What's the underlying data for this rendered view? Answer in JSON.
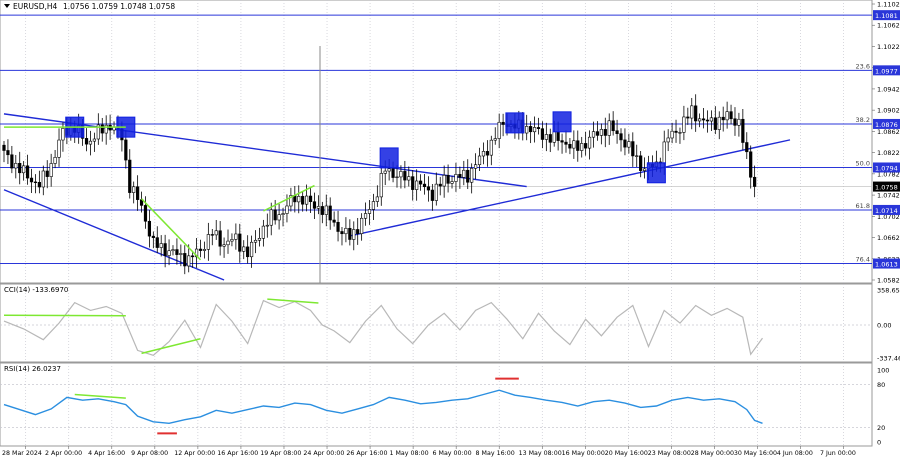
{
  "header": {
    "symbol_label": "EURUSD,H4",
    "ohlc_text": "1.0756 1.0759 1.0748 1.0758"
  },
  "colors": {
    "candle": "#000000",
    "trendline": "#1f2bd6",
    "level_line": "#2a36d9",
    "divergence": "#7ee832",
    "box": "#1020e0",
    "indicator_line_cci": "#b8b8b8",
    "indicator_line_rsi": "#2b8fe0",
    "rsi_marker": "#e03030",
    "price_tag_bg": "#2a36d9",
    "current_price_bg": "#000000",
    "grid": "#c8c8d0"
  },
  "price_axis": {
    "ticks": [
      "1.1102",
      "1.1062",
      "1.1022",
      "1.0982",
      "1.0942",
      "1.0902",
      "1.0862",
      "1.0822",
      "1.0782",
      "1.0742",
      "1.0702",
      "1.0662",
      "1.0622",
      "1.0582"
    ],
    "range": [
      1.0582,
      1.1102
    ],
    "current_price": "1.0758"
  },
  "fib_levels": [
    {
      "label": "",
      "price": 1.1081,
      "tag": "1.1081"
    },
    {
      "label": "23.6",
      "price": 1.0977,
      "tag": "1.0977"
    },
    {
      "label": "38.2",
      "price": 1.0876,
      "tag": "1.0876"
    },
    {
      "label": "50.0",
      "price": 1.0794,
      "tag": "1.0794"
    },
    {
      "label": "61.8",
      "price": 1.0714,
      "tag": "1.0714"
    },
    {
      "label": "76.4",
      "price": 1.0613,
      "tag": "1.0613"
    }
  ],
  "cci": {
    "title": "CCI(14) -133.6970",
    "ticks": [
      "358.6587",
      "0.00",
      "-337.462"
    ],
    "range": [
      -337.462,
      358.6587
    ]
  },
  "rsi": {
    "title": "RSI(14) 26.0237",
    "ticks": [
      "100",
      "80",
      "20",
      "0"
    ],
    "range": [
      0,
      100
    ]
  },
  "time_axis": {
    "labels": [
      "28 Mar 2024",
      "2 Apr 00:00",
      "4 Apr 16:00",
      "9 Apr 08:00",
      "12 Apr 00:00",
      "16 Apr 16:00",
      "19 Apr 08:00",
      "24 Apr 00:00",
      "26 Apr 16:00",
      "1 May 08:00",
      "6 May 00:00",
      "8 May 16:00",
      "13 May 08:00",
      "16 May 00:00",
      "20 May 16:00",
      "23 May 08:00",
      "28 May 00:00",
      "30 May 16:00",
      "4 Jun 08:00",
      "7 Jun 00:00"
    ]
  },
  "chart_data": {
    "type": "candlestick",
    "title": "EURUSD,H4",
    "ylim": [
      1.0582,
      1.1102
    ],
    "close_anchors": [
      [
        0,
        1.082
      ],
      [
        4,
        1.079
      ],
      [
        9,
        1.076
      ],
      [
        12,
        1.08
      ],
      [
        15,
        1.086
      ],
      [
        18,
        1.087
      ],
      [
        21,
        1.084
      ],
      [
        24,
        1.086
      ],
      [
        27,
        1.0875
      ],
      [
        30,
        1.085
      ],
      [
        32,
        1.076
      ],
      [
        35,
        1.072
      ],
      [
        38,
        1.065
      ],
      [
        41,
        1.064
      ],
      [
        44,
        1.063
      ],
      [
        47,
        1.062
      ],
      [
        50,
        1.064
      ],
      [
        53,
        1.067
      ],
      [
        56,
        1.065
      ],
      [
        59,
        1.066
      ],
      [
        62,
        1.063
      ],
      [
        65,
        1.067
      ],
      [
        68,
        1.07
      ],
      [
        71,
        1.071
      ],
      [
        74,
        1.074
      ],
      [
        77,
        1.073
      ],
      [
        80,
        1.072
      ],
      [
        83,
        1.07
      ],
      [
        86,
        1.067
      ],
      [
        88,
        1.0665
      ],
      [
        91,
        1.069
      ],
      [
        94,
        1.073
      ],
      [
        97,
        1.079
      ],
      [
        100,
        1.078
      ],
      [
        103,
        1.077
      ],
      [
        106,
        1.076
      ],
      [
        109,
        1.0745
      ],
      [
        112,
        1.077
      ],
      [
        115,
        1.0775
      ],
      [
        118,
        1.078
      ],
      [
        121,
        1.081
      ],
      [
        124,
        1.084
      ],
      [
        127,
        1.088
      ],
      [
        130,
        1.087
      ],
      [
        133,
        1.087
      ],
      [
        136,
        1.086
      ],
      [
        139,
        1.085
      ],
      [
        142,
        1.0845
      ],
      [
        145,
        1.083
      ],
      [
        148,
        1.084
      ],
      [
        151,
        1.086
      ],
      [
        154,
        1.087
      ],
      [
        157,
        1.085
      ],
      [
        160,
        1.082
      ],
      [
        163,
        1.079
      ],
      [
        166,
        1.08
      ],
      [
        169,
        1.085
      ],
      [
        172,
        1.087
      ],
      [
        175,
        1.09
      ],
      [
        178,
        1.088
      ],
      [
        181,
        1.088
      ],
      [
        184,
        1.089
      ],
      [
        187,
        1.088
      ],
      [
        189,
        1.081
      ],
      [
        191,
        1.076
      ]
    ],
    "boxes": [
      {
        "i": 18,
        "price": 1.087
      },
      {
        "i": 31,
        "price": 1.087
      },
      {
        "i": 98,
        "price": 1.0812
      },
      {
        "i": 130,
        "price": 1.0878
      },
      {
        "i": 142,
        "price": 1.088
      },
      {
        "i": 166,
        "price": 1.0784
      }
    ],
    "trendlines": [
      {
        "i1": 0,
        "p1": 1.0895,
        "i2": 133,
        "p2": 1.0758
      },
      {
        "i1": 0,
        "p1": 1.0752,
        "i2": 56,
        "p2": 1.0582
      },
      {
        "i1": 88,
        "p1": 1.0665,
        "i2": 200,
        "p2": 1.0846
      }
    ],
    "divergences_price": [
      {
        "i1": 0,
        "p1": 1.087,
        "i2": 31,
        "p2": 1.087
      },
      {
        "i1": 35,
        "p1": 1.0735,
        "i2": 50,
        "p2": 1.062
      },
      {
        "i1": 66,
        "p1": 1.0712,
        "i2": 79,
        "p2": 1.076
      }
    ],
    "cci_values": [
      {
        "i": 0,
        "v": 40
      },
      {
        "i": 5,
        "v": -40
      },
      {
        "i": 10,
        "v": -150
      },
      {
        "i": 14,
        "v": 20
      },
      {
        "i": 18,
        "v": 230
      },
      {
        "i": 22,
        "v": 150
      },
      {
        "i": 26,
        "v": 190
      },
      {
        "i": 30,
        "v": 120
      },
      {
        "i": 34,
        "v": -260
      },
      {
        "i": 38,
        "v": -310
      },
      {
        "i": 42,
        "v": -170
      },
      {
        "i": 46,
        "v": 50
      },
      {
        "i": 50,
        "v": -230
      },
      {
        "i": 54,
        "v": 210
      },
      {
        "i": 58,
        "v": 40
      },
      {
        "i": 62,
        "v": -190
      },
      {
        "i": 66,
        "v": 250
      },
      {
        "i": 70,
        "v": 180
      },
      {
        "i": 74,
        "v": 240
      },
      {
        "i": 78,
        "v": 150
      },
      {
        "i": 81,
        "v": 0
      },
      {
        "i": 84,
        "v": -60
      },
      {
        "i": 88,
        "v": -180
      },
      {
        "i": 92,
        "v": 40
      },
      {
        "i": 96,
        "v": 200
      },
      {
        "i": 100,
        "v": -40
      },
      {
        "i": 104,
        "v": -190
      },
      {
        "i": 108,
        "v": 0
      },
      {
        "i": 112,
        "v": 120
      },
      {
        "i": 116,
        "v": -50
      },
      {
        "i": 120,
        "v": 150
      },
      {
        "i": 124,
        "v": 230
      },
      {
        "i": 128,
        "v": 60
      },
      {
        "i": 132,
        "v": -140
      },
      {
        "i": 136,
        "v": 120
      },
      {
        "i": 140,
        "v": -60
      },
      {
        "i": 144,
        "v": -200
      },
      {
        "i": 148,
        "v": 60
      },
      {
        "i": 152,
        "v": -110
      },
      {
        "i": 156,
        "v": 80
      },
      {
        "i": 160,
        "v": 200
      },
      {
        "i": 164,
        "v": -220
      },
      {
        "i": 168,
        "v": 150
      },
      {
        "i": 172,
        "v": 20
      },
      {
        "i": 176,
        "v": 200
      },
      {
        "i": 180,
        "v": 100
      },
      {
        "i": 184,
        "v": 170
      },
      {
        "i": 188,
        "v": 80
      },
      {
        "i": 190,
        "v": -300
      },
      {
        "i": 193,
        "v": -134
      }
    ],
    "cci_divergences": [
      {
        "i1": 0,
        "v1": 100,
        "i2": 31,
        "v2": 95
      },
      {
        "i1": 35,
        "v1": -290,
        "i2": 50,
        "v2": -140
      },
      {
        "i1": 67,
        "v1": 265,
        "i2": 80,
        "v2": 225
      }
    ],
    "rsi_values": [
      {
        "i": 0,
        "v": 52
      },
      {
        "i": 4,
        "v": 45
      },
      {
        "i": 8,
        "v": 38
      },
      {
        "i": 12,
        "v": 46
      },
      {
        "i": 16,
        "v": 62
      },
      {
        "i": 20,
        "v": 58
      },
      {
        "i": 24,
        "v": 60
      },
      {
        "i": 28,
        "v": 56
      },
      {
        "i": 31,
        "v": 52
      },
      {
        "i": 34,
        "v": 36
      },
      {
        "i": 38,
        "v": 28
      },
      {
        "i": 42,
        "v": 26
      },
      {
        "i": 46,
        "v": 31
      },
      {
        "i": 50,
        "v": 35
      },
      {
        "i": 54,
        "v": 44
      },
      {
        "i": 58,
        "v": 40
      },
      {
        "i": 62,
        "v": 45
      },
      {
        "i": 66,
        "v": 50
      },
      {
        "i": 70,
        "v": 48
      },
      {
        "i": 74,
        "v": 54
      },
      {
        "i": 78,
        "v": 52
      },
      {
        "i": 82,
        "v": 44
      },
      {
        "i": 86,
        "v": 40
      },
      {
        "i": 90,
        "v": 46
      },
      {
        "i": 94,
        "v": 52
      },
      {
        "i": 98,
        "v": 62
      },
      {
        "i": 102,
        "v": 58
      },
      {
        "i": 106,
        "v": 53
      },
      {
        "i": 110,
        "v": 55
      },
      {
        "i": 114,
        "v": 58
      },
      {
        "i": 118,
        "v": 60
      },
      {
        "i": 122,
        "v": 66
      },
      {
        "i": 126,
        "v": 72
      },
      {
        "i": 130,
        "v": 65
      },
      {
        "i": 134,
        "v": 62
      },
      {
        "i": 138,
        "v": 58
      },
      {
        "i": 142,
        "v": 55
      },
      {
        "i": 146,
        "v": 50
      },
      {
        "i": 150,
        "v": 56
      },
      {
        "i": 154,
        "v": 58
      },
      {
        "i": 158,
        "v": 54
      },
      {
        "i": 162,
        "v": 48
      },
      {
        "i": 166,
        "v": 50
      },
      {
        "i": 170,
        "v": 58
      },
      {
        "i": 174,
        "v": 62
      },
      {
        "i": 178,
        "v": 58
      },
      {
        "i": 182,
        "v": 60
      },
      {
        "i": 186,
        "v": 56
      },
      {
        "i": 189,
        "v": 45
      },
      {
        "i": 191,
        "v": 30
      },
      {
        "i": 193,
        "v": 26
      }
    ],
    "rsi_divergences": [
      {
        "i1": 18,
        "v1": 66,
        "i2": 31,
        "v2": 61
      }
    ],
    "rsi_markers": [
      {
        "i1": 39,
        "i2": 44,
        "v": 12
      },
      {
        "i1": 125,
        "i2": 131,
        "v": 88
      }
    ]
  }
}
